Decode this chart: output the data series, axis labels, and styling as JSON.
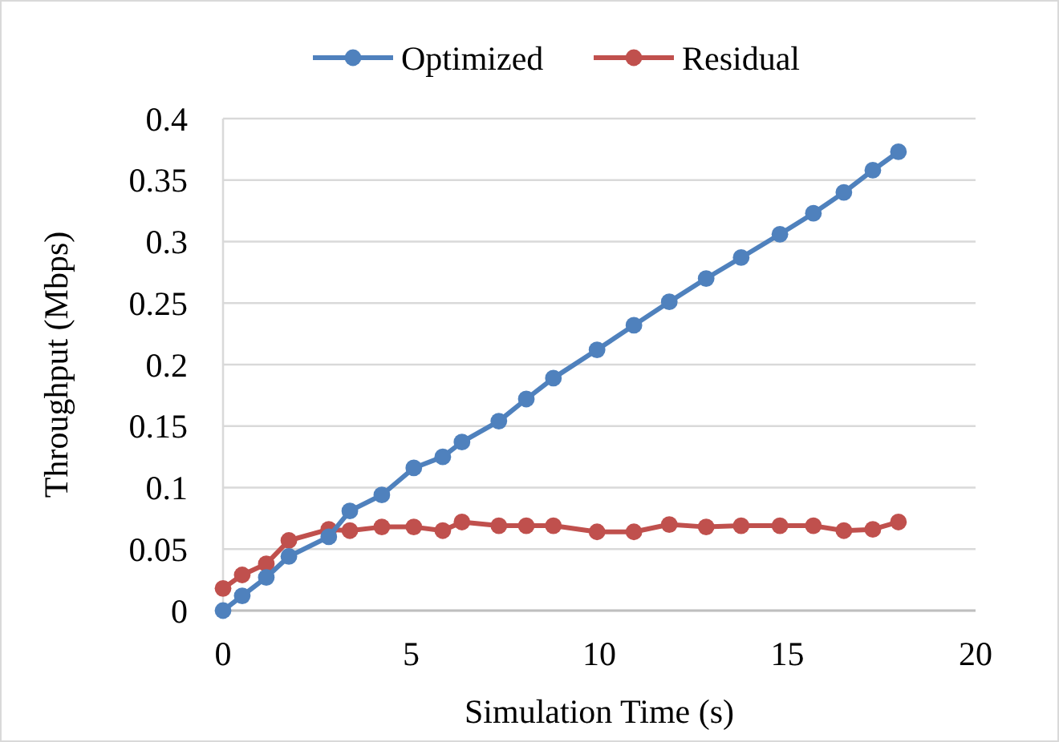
{
  "chart_data": {
    "type": "line",
    "xlabel": "Simulation Time (s)",
    "ylabel": "Throughput (Mbps)",
    "xlim": [
      0,
      20
    ],
    "xticks": [
      0,
      5,
      10,
      15,
      20
    ],
    "ylim": [
      0,
      0.4
    ],
    "yticks": [
      0,
      0.05,
      0.1,
      0.15,
      0.2,
      0.25,
      0.3,
      0.35,
      0.4
    ],
    "grid": "y",
    "legend": "top",
    "marker": "circle",
    "line_style": "solid",
    "x": [
      0,
      0.51,
      1.15,
      1.75,
      2.81,
      3.37,
      4.22,
      5.07,
      5.84,
      6.35,
      7.33,
      8.06,
      8.78,
      9.94,
      10.92,
      11.86,
      12.84,
      13.77,
      14.8,
      15.69,
      16.5,
      17.27,
      17.95
    ],
    "series": [
      {
        "name": "Optimized",
        "color": "#4f81bd",
        "values": [
          0,
          0.012,
          0.027,
          0.044,
          0.06,
          0.081,
          0.094,
          0.116,
          0.125,
          0.137,
          0.154,
          0.172,
          0.189,
          0.212,
          0.232,
          0.251,
          0.27,
          0.287,
          0.306,
          0.323,
          0.34,
          0.358,
          0.373
        ]
      },
      {
        "name": "Residual",
        "color": "#c0504d",
        "values": [
          0.018,
          0.029,
          0.038,
          0.057,
          0.066,
          0.065,
          0.068,
          0.068,
          0.065,
          0.072,
          0.069,
          0.069,
          0.069,
          0.064,
          0.064,
          0.07,
          0.068,
          0.069,
          0.069,
          0.069,
          0.065,
          0.066,
          0.072
        ]
      }
    ]
  }
}
